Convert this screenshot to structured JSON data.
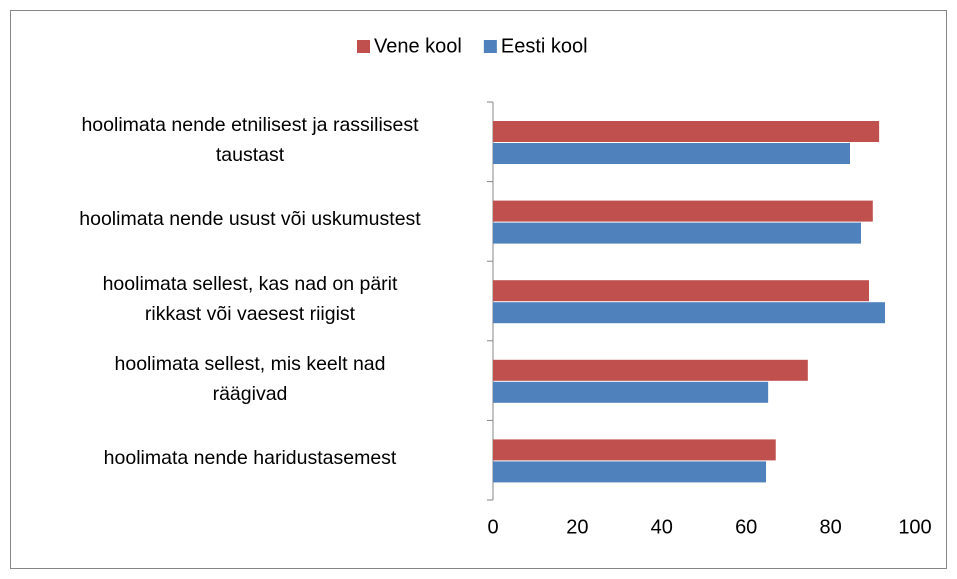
{
  "chart_data": {
    "type": "hbar",
    "categories": [
      "hoolimata nende etnilisest ja rassilisest\ntaustast",
      "hoolimata nende usust või uskumustest",
      "hoolimata sellest, kas nad on pärit\nrikkast või vaesest riigist",
      "hoolimata sellest, mis keelt nad\nräägivad",
      "hoolimata nende haridustasemest"
    ],
    "series": [
      {
        "name": "Vene kool",
        "color": "#c0504d",
        "values": [
          91.5,
          90,
          89.1,
          74.6,
          67
        ]
      },
      {
        "name": "Eesti kool",
        "color": "#4f81bd",
        "values": [
          84.6,
          87.2,
          92.9,
          65.2,
          64.7
        ]
      }
    ],
    "xlim": [
      0,
      100
    ],
    "xticks": [
      0,
      20,
      40,
      60,
      80,
      100
    ],
    "legend": "top"
  }
}
